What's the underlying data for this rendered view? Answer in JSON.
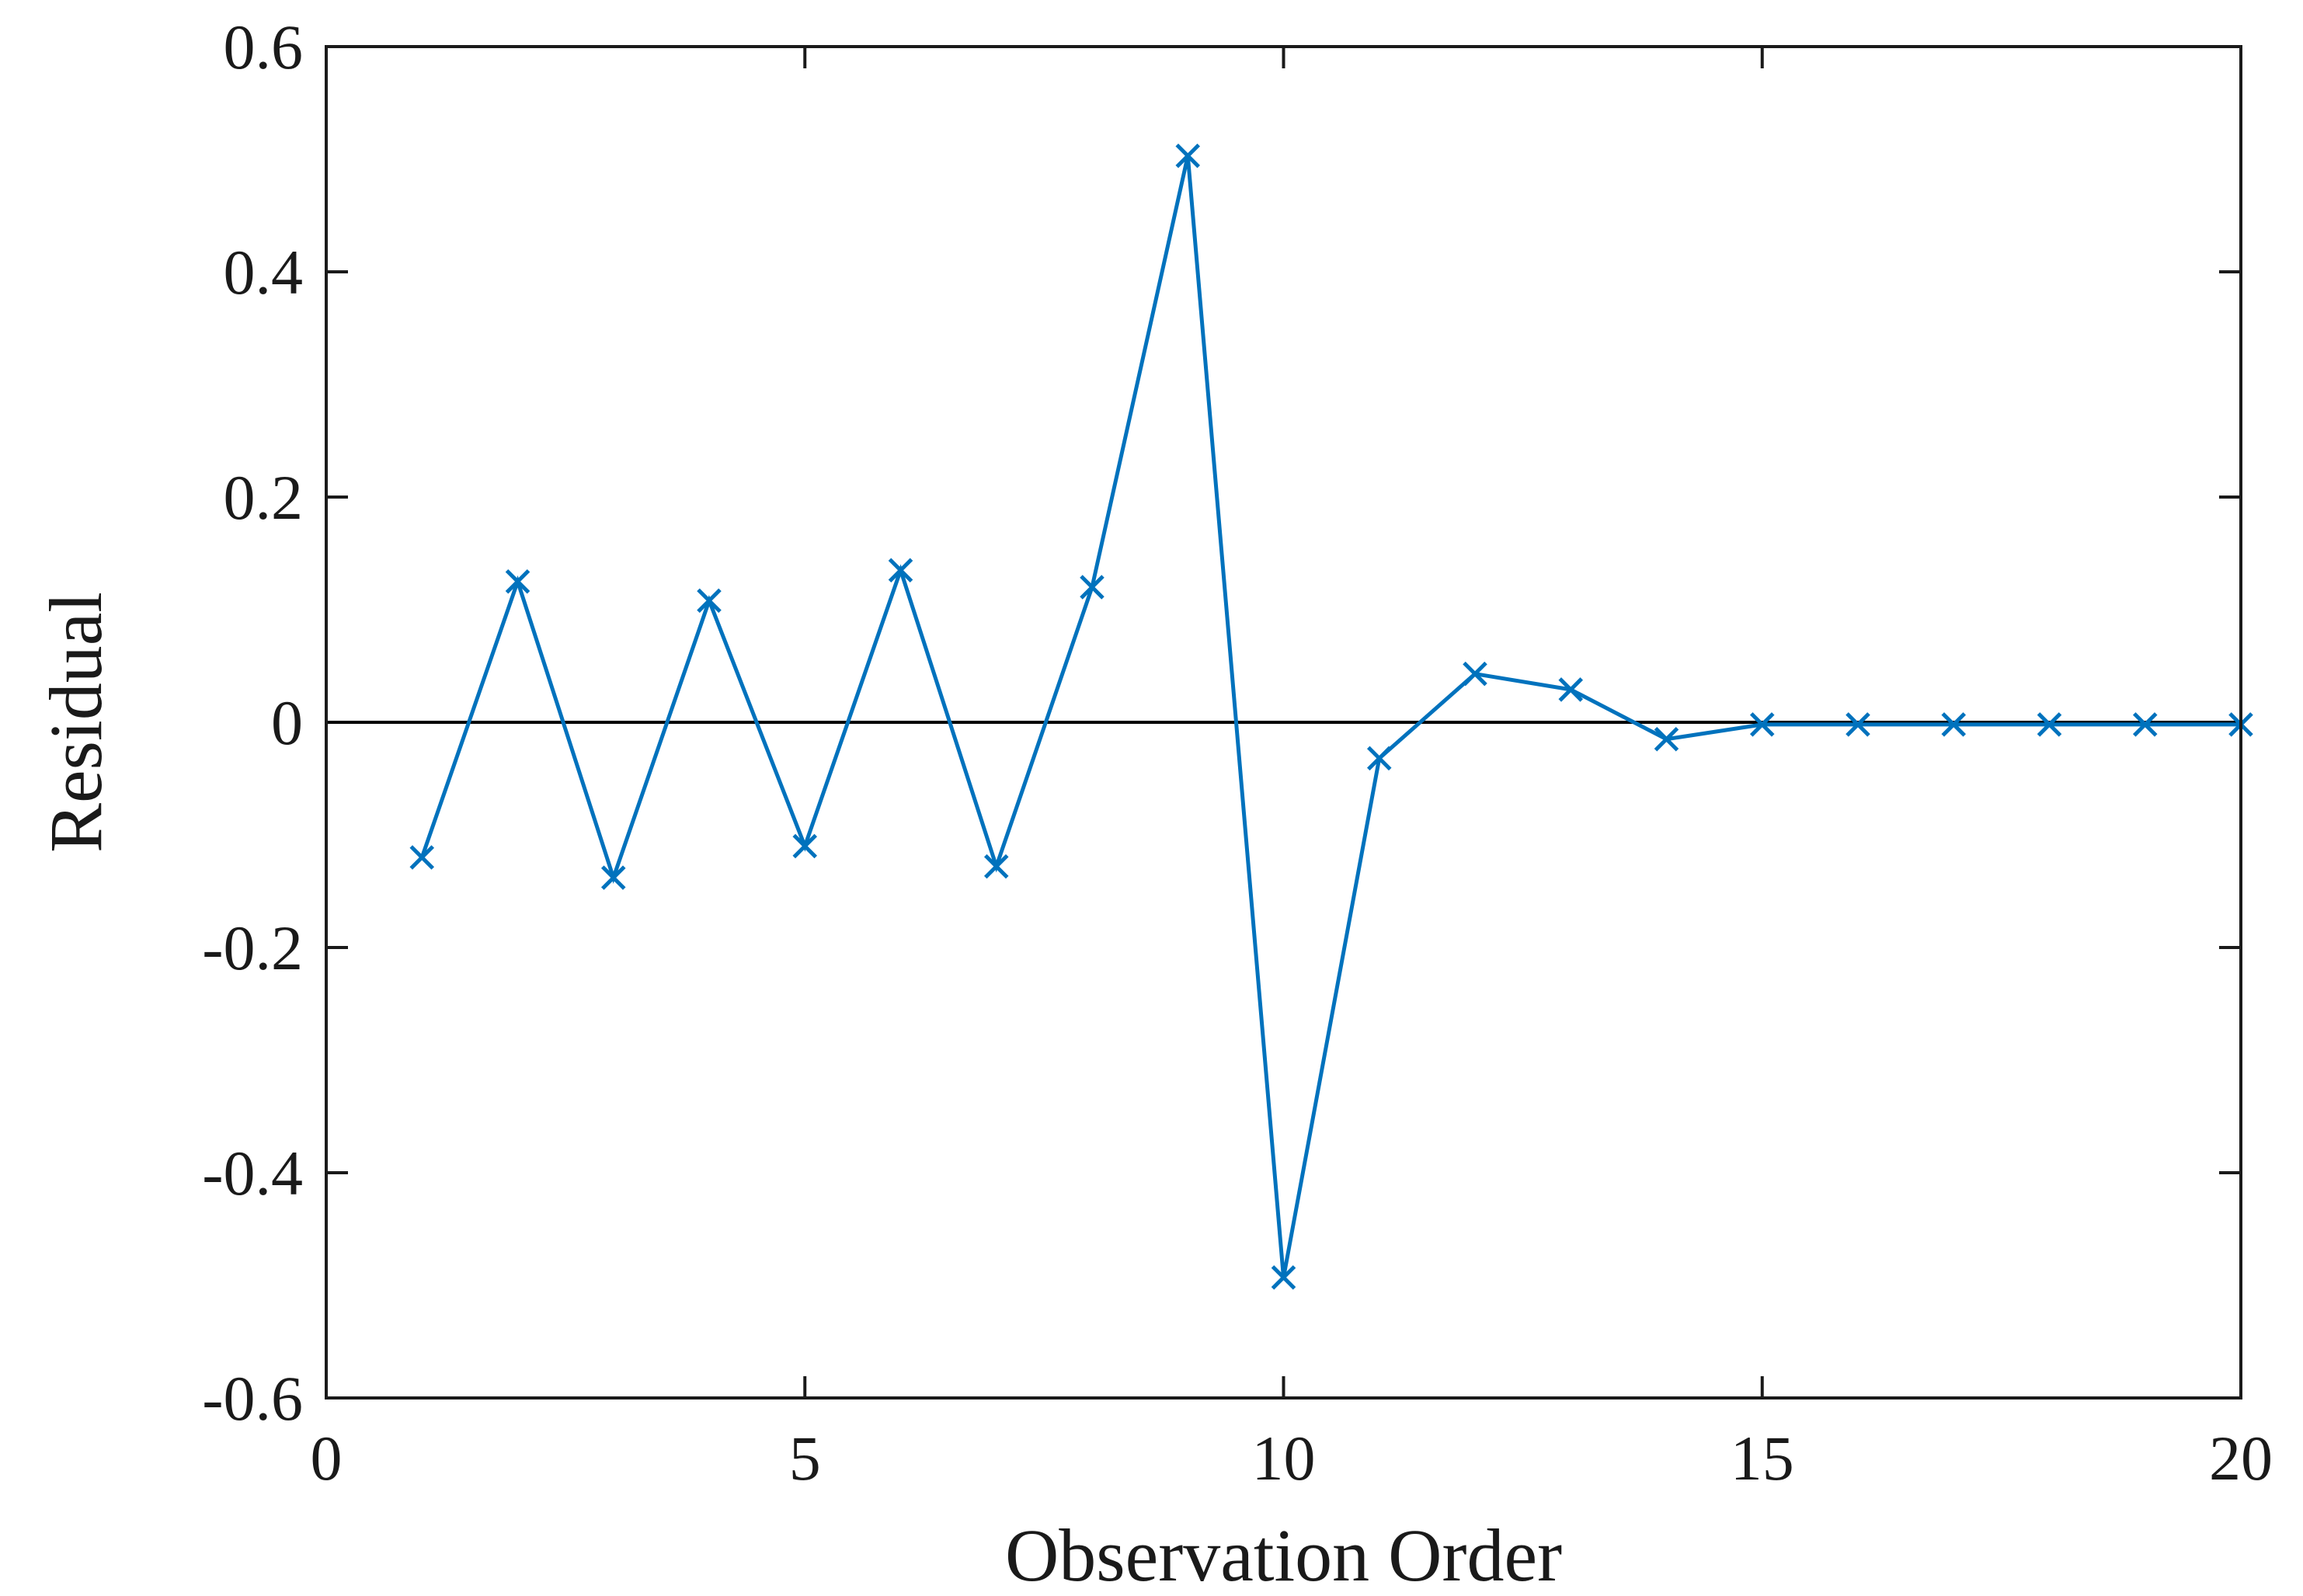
{
  "chart_data": {
    "type": "line",
    "title": "",
    "xlabel": "Observation Order",
    "ylabel": "Residual",
    "xlim": [
      0,
      20
    ],
    "ylim": [
      -0.6,
      0.6
    ],
    "x_ticks": [
      0,
      5,
      10,
      15,
      20
    ],
    "x_tick_labels": [
      "0",
      "5",
      "10",
      "15",
      "20"
    ],
    "y_ticks": [
      0.6,
      0.4,
      0.2,
      0,
      -0.2,
      -0.4,
      -0.6
    ],
    "y_tick_labels": [
      "0.6",
      "0.4",
      "0.2",
      "0",
      "-0.2",
      "-0.4",
      "-0.6"
    ],
    "grid": false,
    "reference_line_y": 0,
    "series": [
      {
        "marker": "x",
        "color": "#0072BD",
        "x": [
          1,
          2,
          3,
          4,
          5,
          6,
          7,
          8,
          9,
          10,
          11,
          12,
          13,
          14,
          15,
          16,
          17,
          18,
          19,
          20
        ],
        "y": [
          -0.12,
          0.125,
          -0.138,
          0.108,
          -0.11,
          0.135,
          -0.128,
          0.12,
          0.503,
          -0.493,
          -0.032,
          0.043,
          0.029,
          -0.015,
          -0.002,
          -0.002,
          -0.002,
          -0.002,
          -0.002,
          -0.002
        ]
      }
    ]
  }
}
